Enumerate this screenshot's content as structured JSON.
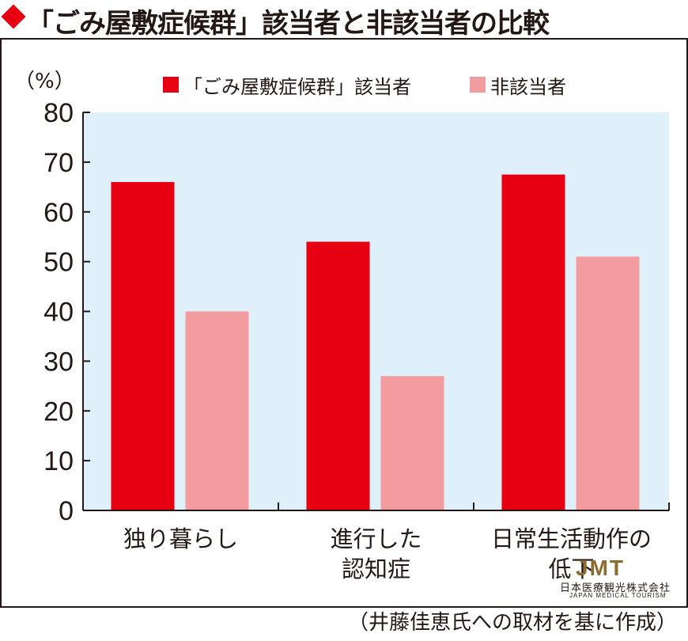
{
  "title": "「ごみ屋敷症候群」該当者と非該当者の比較",
  "source_note": "（井藤佳恵氏への取材を基に作成）",
  "logo": {
    "mark": "JMT",
    "name": "日本医療観光株式会社",
    "sub": "JAPAN MEDICAL TOURISM"
  },
  "colors": {
    "accent": "#e60012",
    "series1": "#e60012",
    "series2": "#f29c9f",
    "plot_background": "#dff0fa"
  },
  "chart_data": {
    "type": "bar",
    "title": "「ごみ屋敷症候群」該当者と非該当者の比較",
    "ylabel": "（%）",
    "ylim": [
      0,
      80
    ],
    "yticks": [
      0,
      10,
      20,
      30,
      40,
      50,
      60,
      70,
      80
    ],
    "categories": [
      [
        "独り暮らし"
      ],
      [
        "進行した",
        "認知症"
      ],
      [
        "日常生活動作の",
        "低下"
      ]
    ],
    "series": [
      {
        "name": "「ごみ屋敷症候群」該当者",
        "values": [
          66,
          54,
          67.5
        ],
        "color": "#e60012"
      },
      {
        "name": "非該当者",
        "values": [
          40,
          27,
          51
        ],
        "color": "#f29c9f"
      }
    ],
    "legend_position": "top",
    "grid": false
  }
}
